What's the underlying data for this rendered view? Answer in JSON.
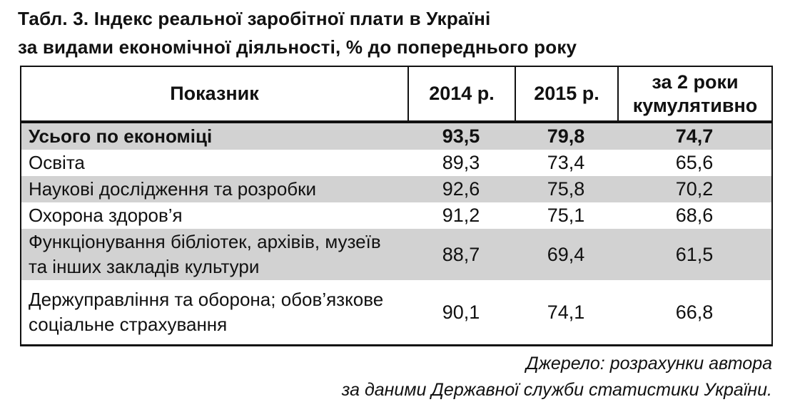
{
  "title": {
    "line1": "Табл. 3. Індекс реальної заробітної плати в Україні",
    "line2": "за видами економічної діяльності, % до попереднього року"
  },
  "table": {
    "header": {
      "indicator": "Показник",
      "col_2014": "2014 р.",
      "col_2015": "2015 р.",
      "col_cumulative_line1": "за 2 роки",
      "col_cumulative_line2": "кумулятивно"
    },
    "rows": [
      {
        "label": "Усього по економіці",
        "y2014": "93,5",
        "y2015": "79,8",
        "cumulative": "74,7",
        "is_total": true
      },
      {
        "label": "Освіта",
        "y2014": "89,3",
        "y2015": "73,4",
        "cumulative": "65,6",
        "is_total": false
      },
      {
        "label": "Наукові дослідження та розробки",
        "y2014": "92,6",
        "y2015": "75,8",
        "cumulative": "70,2",
        "is_total": false
      },
      {
        "label": "Охорона здоров’я",
        "y2014": "91,2",
        "y2015": "75,1",
        "cumulative": "68,6",
        "is_total": false
      },
      {
        "label": "Функціонування бібліотек, архівів, музеїв та інших закладів культури",
        "y2014": "88,7",
        "y2015": "69,4",
        "cumulative": "61,5",
        "is_total": false
      },
      {
        "label": "Держуправління та оборона; обов’язкове соціальне страхування",
        "y2014": "90,1",
        "y2015": "74,1",
        "cumulative": "66,8",
        "is_total": false
      }
    ]
  },
  "source": {
    "line1": "Джерело: розрахунки автора",
    "line2": "за даними Державної служби статистики України."
  },
  "colors": {
    "row_shade": "#d2d2d2",
    "border": "#111111",
    "text": "#111111"
  },
  "chart_data": {
    "type": "table",
    "title": "Індекс реальної заробітної плати в Україні за видами економічної діяльності, % до попереднього року",
    "categories": [
      "Усього по економіці",
      "Освіта",
      "Наукові дослідження та розробки",
      "Охорона здоров’я",
      "Функціонування бібліотек, архівів, музеїв та інших закладів культури",
      "Держуправління та оборона; обов’язкове соціальне страхування"
    ],
    "series": [
      {
        "name": "2014 р.",
        "values": [
          93.5,
          89.3,
          92.6,
          91.2,
          88.7,
          90.1
        ]
      },
      {
        "name": "2015 р.",
        "values": [
          79.8,
          73.4,
          75.8,
          75.1,
          69.4,
          74.1
        ]
      },
      {
        "name": "за 2 роки кумулятивно",
        "values": [
          74.7,
          65.6,
          70.2,
          68.6,
          61.5,
          66.8
        ]
      }
    ]
  }
}
